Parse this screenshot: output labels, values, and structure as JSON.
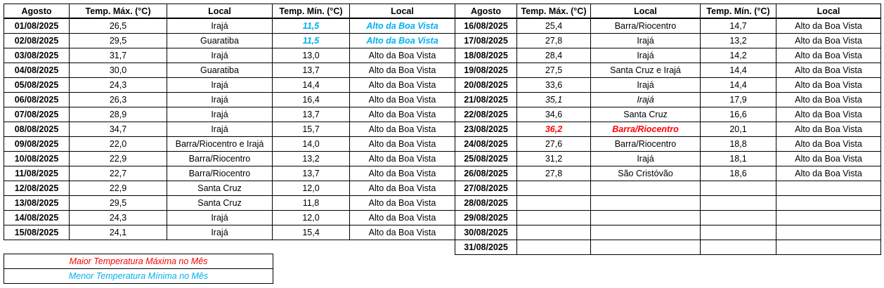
{
  "left_table": {
    "headers": [
      "Agosto",
      "Temp. Máx. (°C)",
      "Local",
      "Temp. Mín. (°C)",
      "Local"
    ],
    "rows": [
      [
        "01/08/2025",
        "26,5",
        "Irajá",
        "11,5",
        "Alto da Boa Vista"
      ],
      [
        "02/08/2025",
        "29,5",
        "Guaratiba",
        "11,5",
        "Alto da Boa Vista"
      ],
      [
        "03/08/2025",
        "31,7",
        "Irajá",
        "13,0",
        "Alto da Boa Vista"
      ],
      [
        "04/08/2025",
        "30,0",
        "Guaratiba",
        "13,7",
        "Alto da Boa Vista"
      ],
      [
        "05/08/2025",
        "24,3",
        "Irajá",
        "14,4",
        "Alto da Boa Vista"
      ],
      [
        "06/08/2025",
        "26,3",
        "Irajá",
        "16,4",
        "Alto da Boa Vista"
      ],
      [
        "07/08/2025",
        "28,9",
        "Irajá",
        "13,7",
        "Alto da Boa Vista"
      ],
      [
        "08/08/2025",
        "34,7",
        "Irajá",
        "15,7",
        "Alto da Boa Vista"
      ],
      [
        "09/08/2025",
        "22,0",
        "Barra/Riocentro e Irajá",
        "14,0",
        "Alto da Boa Vista"
      ],
      [
        "10/08/2025",
        "22,9",
        "Barra/Riocentro",
        "13,2",
        "Alto da Boa Vista"
      ],
      [
        "11/08/2025",
        "22,7",
        "Barra/Riocentro",
        "13,7",
        "Alto da Boa Vista"
      ],
      [
        "12/08/2025",
        "22,9",
        "Santa Cruz",
        "12,0",
        "Alto da Boa Vista"
      ],
      [
        "13/08/2025",
        "29,5",
        "Santa Cruz",
        "11,8",
        "Alto da Boa Vista"
      ],
      [
        "14/08/2025",
        "24,3",
        "Irajá",
        "12,0",
        "Alto da Boa Vista"
      ],
      [
        "15/08/2025",
        "24,1",
        "Irajá",
        "15,4",
        "Alto da Boa Vista"
      ]
    ]
  },
  "right_table": {
    "headers": [
      "Agosto",
      "Temp. Máx. (°C)",
      "Local",
      "Temp. Mín. (°C)",
      "Local"
    ],
    "rows": [
      [
        "16/08/2025",
        "25,4",
        "Barra/Riocentro",
        "14,7",
        "Alto da Boa Vista"
      ],
      [
        "17/08/2025",
        "27,8",
        "Irajá",
        "13,2",
        "Alto da Boa Vista"
      ],
      [
        "18/08/2025",
        "28,4",
        "Irajá",
        "14,2",
        "Alto da Boa Vista"
      ],
      [
        "19/08/2025",
        "27,5",
        "Santa Cruz e Irajá",
        "14,4",
        "Alto da Boa Vista"
      ],
      [
        "20/08/2025",
        "33,6",
        "Irajá",
        "14,4",
        "Alto da Boa Vista"
      ],
      [
        "21/08/2025",
        "35,1",
        "Irajá",
        "17,9",
        "Alto da Boa Vista"
      ],
      [
        "22/08/2025",
        "34,6",
        "Santa Cruz",
        "16,6",
        "Alto da Boa Vista"
      ],
      [
        "23/08/2025",
        "36,2",
        "Barra/Riocentro",
        "20,1",
        "Alto da Boa Vista"
      ],
      [
        "24/08/2025",
        "27,6",
        "Barra/Riocentro",
        "18,8",
        "Alto da Boa Vista"
      ],
      [
        "25/08/2025",
        "31,2",
        "Irajá",
        "18,1",
        "Alto da Boa Vista"
      ],
      [
        "26/08/2025",
        "27,8",
        "São Cristóvão",
        "18,6",
        "Alto da Boa Vista"
      ],
      [
        "27/08/2025"
      ],
      [
        "28/08/2025"
      ],
      [
        "29/08/2025"
      ],
      [
        "30/08/2025"
      ],
      [
        "31/08/2025"
      ]
    ]
  },
  "legend": {
    "max": "Maior Temperatura Máxima no Mês",
    "min": "Menor Temperatura Mínima no Mês"
  }
}
